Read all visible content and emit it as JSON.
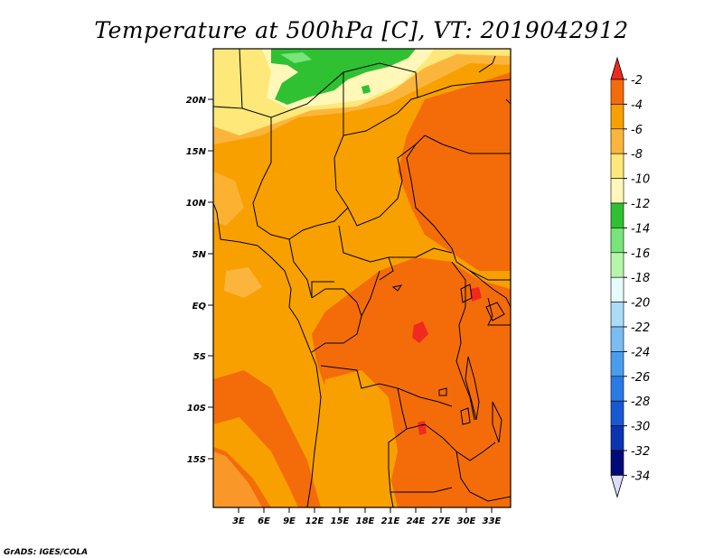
{
  "title": "Temperature at 500hPa [C], VT: 2019042912",
  "credit": "GrADS: IGES/COLA",
  "map": {
    "variable": "Temperature at 500hPa",
    "units": "C",
    "lat_ticks": [
      "20N",
      "15N",
      "10N",
      "5N",
      "EQ",
      "5S",
      "10S",
      "15S"
    ],
    "lon_ticks": [
      "3E",
      "6E",
      "9E",
      "12E",
      "15E",
      "18E",
      "21E",
      "24E",
      "27E",
      "30E",
      "33E"
    ]
  },
  "legend": {
    "levels": [
      "-2",
      "-4",
      "-6",
      "-8",
      "-10",
      "-12",
      "-14",
      "-16",
      "-18",
      "-20",
      "-22",
      "-24",
      "-26",
      "-28",
      "-30",
      "-32",
      "-34"
    ],
    "colors": [
      "#f02a1e",
      "#f46c0a",
      "#f8a000",
      "#fcb53c",
      "#fee87a",
      "#fff8b8",
      "#2fc132",
      "#78e47a",
      "#b6f6aa",
      "#e4fcfc",
      "#aadcf8",
      "#7abcf4",
      "#4a9cee",
      "#2a7ae6",
      "#1858d2",
      "#0c34b2",
      "#000a78"
    ],
    "top_arrow_color": "#f02a1e",
    "bottom_arrow_color": "#dcdcfc"
  }
}
